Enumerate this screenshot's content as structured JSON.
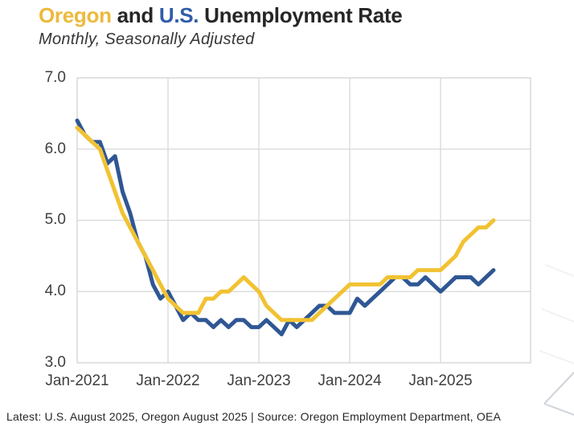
{
  "header": {
    "title": {
      "oregon": "Oregon",
      "and": "and",
      "us": "U.S.",
      "rest": "Unemployment Rate"
    },
    "subtitle": "Monthly, Seasonally Adjusted"
  },
  "footer": {
    "text": "Latest: U.S. August 2025,  Oregon August 2025 | Source: Oregon Employment Department, OEA"
  },
  "colors": {
    "title_oregon_gold": "#EDB93C",
    "title_us_blue": "#2F5DA8",
    "title_dark": "#262626",
    "oregon_line": "#F1C232",
    "us_line": "#2F5794",
    "grid": "#D8D8D8",
    "axis_text": "#3F3F3F",
    "watermark": "#CFD4DA",
    "watermark_faint": "#F1F2F4"
  },
  "chart_data": {
    "type": "line",
    "title": "Oregon and U.S. Unemployment Rate",
    "subtitle": "Monthly, Seasonally Adjusted",
    "x_unit": "month",
    "x_range": [
      "Jan-2021",
      "Aug-2025"
    ],
    "x_tick_labels": [
      "Jan-2021",
      "Jan-2022",
      "Jan-2023",
      "Jan-2024",
      "Jan-2025"
    ],
    "y_tick_labels": [
      "7.0",
      "6.0",
      "5.0",
      "4.0",
      "3.0"
    ],
    "ylim": [
      3.0,
      7.0
    ],
    "grid": true,
    "legend": "none",
    "series": [
      {
        "name": "U.S.",
        "color": "#2F5794",
        "latest_label": "U.S. August 2025",
        "values": [
          6.4,
          6.2,
          6.1,
          6.1,
          5.8,
          5.9,
          5.4,
          5.1,
          4.7,
          4.5,
          4.1,
          3.9,
          4.0,
          3.8,
          3.6,
          3.7,
          3.6,
          3.6,
          3.5,
          3.6,
          3.5,
          3.6,
          3.6,
          3.5,
          3.5,
          3.6,
          3.5,
          3.4,
          3.6,
          3.5,
          3.6,
          3.7,
          3.8,
          3.8,
          3.7,
          3.7,
          3.7,
          3.9,
          3.8,
          3.9,
          4.0,
          4.1,
          4.2,
          4.2,
          4.1,
          4.1,
          4.2,
          4.1,
          4.0,
          4.1,
          4.2,
          4.2,
          4.2,
          4.1,
          4.2,
          4.3
        ]
      },
      {
        "name": "Oregon",
        "color": "#F1C232",
        "latest_label": "Oregon August 2025",
        "values": [
          6.3,
          6.2,
          6.1,
          6.0,
          5.7,
          5.4,
          5.1,
          4.9,
          4.7,
          4.5,
          4.3,
          4.1,
          3.9,
          3.8,
          3.7,
          3.7,
          3.7,
          3.9,
          3.9,
          4.0,
          4.0,
          4.1,
          4.2,
          4.1,
          4.0,
          3.8,
          3.7,
          3.6,
          3.6,
          3.6,
          3.6,
          3.6,
          3.7,
          3.8,
          3.9,
          4.0,
          4.1,
          4.1,
          4.1,
          4.1,
          4.1,
          4.2,
          4.2,
          4.2,
          4.2,
          4.3,
          4.3,
          4.3,
          4.3,
          4.4,
          4.5,
          4.7,
          4.8,
          4.9,
          4.9,
          5.0
        ]
      }
    ]
  }
}
